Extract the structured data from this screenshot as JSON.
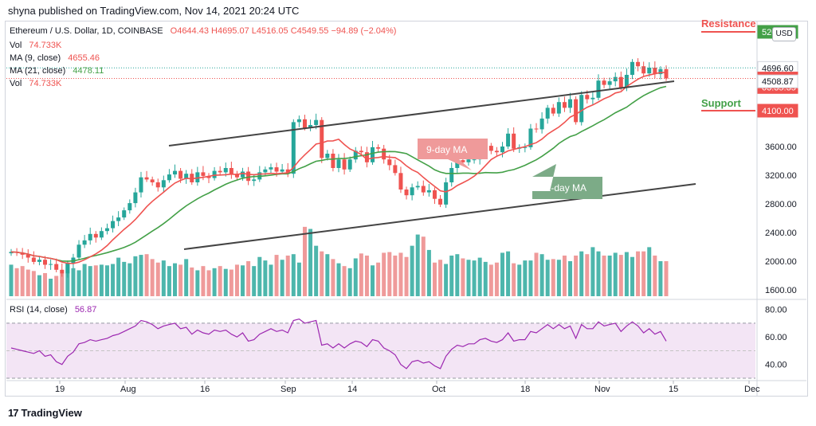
{
  "header": {
    "published": "shyna published on TradingView.com, Nov 14, 2021 20:24 UTC"
  },
  "legend": {
    "symbol": "Ethereum / U.S. Dollar, 1D, COINBASE",
    "ohlc": "O4644.43  H4695.07  L4516.05  C4549.55  −94.89 (−2.04%)",
    "vol_label": "Vol",
    "vol_value": "74.733K",
    "ma9_label": "MA (9, close)",
    "ma9_value": "4655.46",
    "ma21_label": "MA (21, close)",
    "ma21_value": "4478.11",
    "vol2_label": "Vol",
    "vol2_value": "74.733K",
    "rsi_label": "RSI (14, close)",
    "rsi_value": "56.87"
  },
  "currency_button": "USD",
  "annotations": {
    "resistance": "Resistance",
    "support": "Support",
    "ma9_tag": "9-day MA",
    "ma21_tag": "21-day MA"
  },
  "price_tags": [
    {
      "text": "5200.00",
      "price": 5200,
      "color": "#43a047"
    },
    {
      "text": "4696.60",
      "price": 4696.6,
      "color": "#ffffff"
    },
    {
      "text": "4549.55",
      "price": 4549.55,
      "color": "#ef5350"
    },
    {
      "text": "03:35:35",
      "price": 4430,
      "color": "#ef5350"
    },
    {
      "text": "4508.87",
      "price": 4508.87,
      "color": "#ffffff"
    },
    {
      "text": "4100.00",
      "price": 4100,
      "color": "#ef5350"
    }
  ],
  "footer": {
    "logo": "17",
    "brand": "TradingView"
  },
  "colors": {
    "up": "#26a69a",
    "down": "#ef5350",
    "ma9": "#ef5350",
    "ma21": "#43a047",
    "rsi": "#9c27b0",
    "rsi_band": "#f3e5f5",
    "resistance": "#ef5350",
    "support": "#ef5350",
    "channel": "#444444"
  },
  "chart_data": {
    "type": "candlestick",
    "x_ticks": [
      "19",
      "Aug",
      "16",
      "Sep",
      "14",
      "Oct",
      "18",
      "Nov",
      "15",
      "Dec"
    ],
    "y_ticks": [
      "5200.00",
      "4696.60",
      "3600.00",
      "3200.00",
      "2800.00",
      "2400.00",
      "2000.00",
      "1600.00"
    ],
    "y_range": [
      1600,
      5200
    ],
    "rsi_ticks": [
      "80.00",
      "60.00",
      "40.00"
    ],
    "rsi_range": [
      30,
      85
    ],
    "rsi_bands": [
      30,
      70
    ],
    "close": [
      2130,
      2120,
      2090,
      2050,
      1990,
      2020,
      1950,
      1960,
      1880,
      1830,
      1970,
      2050,
      2230,
      2290,
      2380,
      2330,
      2420,
      2460,
      2560,
      2610,
      2710,
      2810,
      2960,
      3170,
      3140,
      3100,
      3030,
      3130,
      3210,
      3260,
      3150,
      3220,
      3100,
      3240,
      3190,
      3160,
      3260,
      3240,
      3300,
      3220,
      3170,
      3250,
      3120,
      3140,
      3240,
      3280,
      3310,
      3250,
      3280,
      3220,
      3940,
      3980,
      3860,
      3900,
      3970,
      3440,
      3500,
      3300,
      3420,
      3280,
      3420,
      3540,
      3520,
      3380,
      3590,
      3570,
      3420,
      3340,
      3230,
      3000,
      2920,
      3030,
      3050,
      2960,
      2990,
      2870,
      2790,
      3100,
      3300,
      3410,
      3380,
      3420,
      3420,
      3580,
      3610,
      3540,
      3520,
      3600,
      3780,
      3570,
      3590,
      3590,
      3850,
      3840,
      3990,
      4140,
      4060,
      4220,
      4140,
      4260,
      3940,
      4320,
      4260,
      4280,
      4520,
      4460,
      4510,
      4570,
      4420,
      4600,
      4780,
      4720,
      4620,
      4700,
      4610,
      4680,
      4550
    ],
    "vol": [
      45,
      40,
      43,
      38,
      36,
      30,
      33,
      25,
      29,
      33,
      48,
      40,
      37,
      46,
      43,
      44,
      45,
      44,
      46,
      55,
      49,
      47,
      57,
      59,
      60,
      53,
      48,
      51,
      43,
      47,
      45,
      53,
      41,
      37,
      43,
      37,
      40,
      43,
      39,
      38,
      45,
      44,
      50,
      43,
      56,
      51,
      45,
      59,
      52,
      58,
      60,
      48,
      99,
      96,
      72,
      64,
      60,
      53,
      47,
      43,
      40,
      54,
      61,
      58,
      44,
      48,
      62,
      63,
      58,
      62,
      56,
      72,
      88,
      85,
      66,
      48,
      52,
      46,
      58,
      60,
      54,
      52,
      51,
      55,
      49,
      45,
      48,
      62,
      64,
      47,
      45,
      51,
      51,
      62,
      60,
      52,
      53,
      52,
      58,
      50,
      58,
      64,
      60,
      70,
      64,
      58,
      58,
      62,
      59,
      63,
      56,
      64,
      64,
      70,
      58,
      50,
      50
    ],
    "rsi": [
      52,
      51,
      50,
      49,
      48,
      50,
      46,
      47,
      42,
      40,
      46,
      49,
      55,
      56,
      58,
      57,
      58,
      59,
      61,
      62,
      64,
      66,
      68,
      72,
      71,
      69,
      66,
      68,
      69,
      70,
      66,
      67,
      62,
      65,
      63,
      62,
      65,
      64,
      65,
      62,
      60,
      63,
      57,
      58,
      62,
      64,
      66,
      64,
      65,
      63,
      72,
      73,
      70,
      71,
      72,
      54,
      55,
      52,
      55,
      52,
      55,
      57,
      56,
      53,
      58,
      57,
      52,
      50,
      47,
      40,
      37,
      42,
      43,
      41,
      42,
      39,
      37,
      46,
      51,
      54,
      53,
      55,
      55,
      58,
      59,
      57,
      56,
      58,
      63,
      57,
      58,
      58,
      64,
      63,
      66,
      69,
      66,
      69,
      66,
      68,
      59,
      69,
      66,
      66,
      71,
      68,
      69,
      70,
      64,
      68,
      71,
      68,
      63,
      66,
      62,
      64,
      57
    ]
  }
}
